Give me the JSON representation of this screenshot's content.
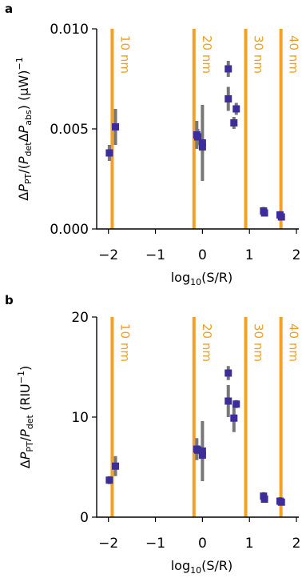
{
  "colors": {
    "guide_line": "#f4a024",
    "marker": "#3c2d9b",
    "errorbar": "#777777",
    "axis": "#000000"
  },
  "chart_data": [
    {
      "panel": "a",
      "type": "scatter",
      "ylabel_html": "ΔP<sub>PT</sub>/(P<sub>det</sub>ΔP<sub>abs</sub>) (μW)<sup>−1</sup>",
      "ylabel_parts": [
        {
          "t": "Δ",
          "s": "normal"
        },
        {
          "t": "P",
          "s": "italic"
        },
        {
          "t": "PT",
          "s": "sub"
        },
        {
          "t": "/(",
          "s": "normal"
        },
        {
          "t": "P",
          "s": "italic"
        },
        {
          "t": "det",
          "s": "sub"
        },
        {
          "t": "Δ",
          "s": "normal"
        },
        {
          "t": "P",
          "s": "italic"
        },
        {
          "t": "abs",
          "s": "sub"
        },
        {
          "t": ") (μW)",
          "s": "normal"
        },
        {
          "t": "−1",
          "s": "sup"
        }
      ],
      "xlabel_parts": [
        {
          "t": "log",
          "s": "normal"
        },
        {
          "t": "10",
          "s": "sub"
        },
        {
          "t": "(S/R)",
          "s": "normal"
        }
      ],
      "xlim": [
        -2.25,
        2.05
      ],
      "ylim": [
        0,
        0.01
      ],
      "xticks": [
        -2,
        -1,
        0,
        1,
        2
      ],
      "xtick_labels": [
        "−2",
        "−1",
        "0",
        "1",
        "2"
      ],
      "yticks": [
        0,
        0.005,
        0.01
      ],
      "ytick_labels": [
        "0.000",
        "0.005",
        "0.010"
      ],
      "vlines": [
        {
          "x": -1.92,
          "label": "10 nm"
        },
        {
          "x": -0.18,
          "label": "20 nm"
        },
        {
          "x": 0.92,
          "label": "30 nm"
        },
        {
          "x": 1.67,
          "label": "40 nm"
        }
      ],
      "points": [
        {
          "x": -1.98,
          "y": 0.0038,
          "err": 0.0004
        },
        {
          "x": -1.85,
          "y": 0.0051,
          "err": 0.0009
        },
        {
          "x": -0.12,
          "y": 0.0047,
          "err": 0.0007
        },
        {
          "x": -0.1,
          "y": 0.0046,
          "err": 0.0004
        },
        {
          "x": 0.0,
          "y": 0.0043,
          "err": 0.0019
        },
        {
          "x": 0.0,
          "y": 0.0041,
          "err": 0.0003
        },
        {
          "x": 0.55,
          "y": 0.008,
          "err": 0.0004
        },
        {
          "x": 0.55,
          "y": 0.0065,
          "err": 0.0006
        },
        {
          "x": 0.67,
          "y": 0.0053,
          "err": 0.0003
        },
        {
          "x": 0.72,
          "y": 0.006,
          "err": 0.0003
        },
        {
          "x": 1.3,
          "y": 0.0009,
          "err": 0.0002
        },
        {
          "x": 1.32,
          "y": 0.0008,
          "err": 0.0001
        },
        {
          "x": 1.65,
          "y": 0.0007,
          "err": 0.0002
        },
        {
          "x": 1.68,
          "y": 0.0006,
          "err": 0.0001
        }
      ]
    },
    {
      "panel": "b",
      "type": "scatter",
      "ylabel_html": "ΔP<sub>PT</sub>/P<sub>det</sub> (RIU<sup>−1</sup>)",
      "ylabel_parts": [
        {
          "t": "Δ",
          "s": "normal"
        },
        {
          "t": "P",
          "s": "italic"
        },
        {
          "t": "PT",
          "s": "sub"
        },
        {
          "t": "/",
          "s": "normal"
        },
        {
          "t": "P",
          "s": "italic"
        },
        {
          "t": "det",
          "s": "sub"
        },
        {
          "t": " (RIU",
          "s": "normal"
        },
        {
          "t": "−1",
          "s": "sup"
        },
        {
          "t": ")",
          "s": "normal"
        }
      ],
      "xlabel_parts": [
        {
          "t": "log",
          "s": "normal"
        },
        {
          "t": "10",
          "s": "sub"
        },
        {
          "t": "(S/R)",
          "s": "normal"
        }
      ],
      "xlim": [
        -2.25,
        2.05
      ],
      "ylim": [
        0,
        20
      ],
      "xticks": [
        -2,
        -1,
        0,
        1,
        2
      ],
      "xtick_labels": [
        "−2",
        "−1",
        "0",
        "1",
        "2"
      ],
      "yticks": [
        0,
        10,
        20
      ],
      "ytick_labels": [
        "0",
        "10",
        "20"
      ],
      "vlines": [
        {
          "x": -1.92,
          "label": "10 nm"
        },
        {
          "x": -0.18,
          "label": "20 nm"
        },
        {
          "x": 0.92,
          "label": "30 nm"
        },
        {
          "x": 1.67,
          "label": "40 nm"
        }
      ],
      "points": [
        {
          "x": -1.98,
          "y": 3.7,
          "err": 0.4
        },
        {
          "x": -1.85,
          "y": 5.1,
          "err": 1.0
        },
        {
          "x": -0.12,
          "y": 6.8,
          "err": 1.1
        },
        {
          "x": -0.1,
          "y": 6.7,
          "err": 0.4
        },
        {
          "x": 0.0,
          "y": 6.6,
          "err": 3.0
        },
        {
          "x": 0.0,
          "y": 6.2,
          "err": 0.5
        },
        {
          "x": 0.55,
          "y": 14.4,
          "err": 0.7
        },
        {
          "x": 0.55,
          "y": 11.6,
          "err": 1.6
        },
        {
          "x": 0.67,
          "y": 9.9,
          "err": 1.4
        },
        {
          "x": 0.72,
          "y": 11.3,
          "err": 0.4
        },
        {
          "x": 1.3,
          "y": 2.1,
          "err": 0.4
        },
        {
          "x": 1.32,
          "y": 1.8,
          "err": 0.2
        },
        {
          "x": 1.65,
          "y": 1.6,
          "err": 0.4
        },
        {
          "x": 1.68,
          "y": 1.5,
          "err": 0.2
        }
      ]
    }
  ]
}
